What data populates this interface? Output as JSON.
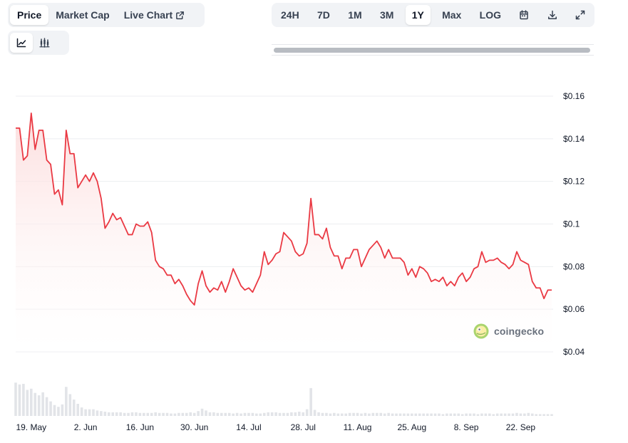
{
  "toolbar": {
    "view_tabs": [
      {
        "label": "Price",
        "active": true
      },
      {
        "label": "Market Cap",
        "active": false
      },
      {
        "label": "Live Chart",
        "active": false,
        "icon": "external-link-icon"
      }
    ],
    "chart_type_buttons": [
      {
        "icon": "line-chart-icon",
        "active": true
      },
      {
        "icon": "candlestick-chart-icon",
        "active": false
      }
    ],
    "range_tabs": [
      {
        "label": "24H",
        "active": false
      },
      {
        "label": "7D",
        "active": false
      },
      {
        "label": "1M",
        "active": false
      },
      {
        "label": "3M",
        "active": false
      },
      {
        "label": "1Y",
        "active": true
      },
      {
        "label": "Max",
        "active": false
      },
      {
        "label": "LOG",
        "active": false
      }
    ],
    "action_icons": [
      "calendar-icon",
      "download-icon",
      "fullscreen-icon"
    ]
  },
  "watermark": {
    "text": "coingecko"
  },
  "colors": {
    "line": "#ea3943",
    "fill_top": "#fcdcdc",
    "volume": "#e2e4e8",
    "grid": "#eceef1"
  },
  "chart_data": {
    "type": "line",
    "title": "",
    "xlabel": "",
    "ylabel": "",
    "ylim": [
      0.04,
      0.16
    ],
    "grid": true,
    "yticks": [
      0.16,
      0.14,
      0.12,
      0.1,
      0.08,
      0.06,
      0.04
    ],
    "ytick_labels": [
      "$0.16",
      "$0.14",
      "$0.12",
      "$0.1",
      "$0.08",
      "$0.06",
      "$0.04"
    ],
    "xtick_labels": [
      "19. May",
      "2. Jun",
      "16. Jun",
      "30. Jun",
      "14. Jul",
      "28. Jul",
      "11. Aug",
      "25. Aug",
      "8. Sep",
      "22. Sep"
    ],
    "xtick_days": [
      4,
      18,
      32,
      46,
      60,
      74,
      88,
      102,
      116,
      130
    ],
    "series": [
      {
        "values": [
          0.145,
          0.145,
          0.13,
          0.132,
          0.152,
          0.135,
          0.144,
          0.144,
          0.13,
          0.128,
          0.114,
          0.116,
          0.109,
          0.144,
          0.133,
          0.133,
          0.117,
          0.12,
          0.123,
          0.12,
          0.124,
          0.12,
          0.112,
          0.098,
          0.101,
          0.105,
          0.102,
          0.103,
          0.099,
          0.095,
          0.095,
          0.1,
          0.099,
          0.099,
          0.101,
          0.096,
          0.083,
          0.08,
          0.079,
          0.076,
          0.076,
          0.072,
          0.074,
          0.071,
          0.067,
          0.064,
          0.062,
          0.072,
          0.078,
          0.071,
          0.068,
          0.07,
          0.069,
          0.073,
          0.068,
          0.073,
          0.079,
          0.075,
          0.071,
          0.069,
          0.07,
          0.068,
          0.072,
          0.076,
          0.087,
          0.081,
          0.083,
          0.086,
          0.087,
          0.096,
          0.094,
          0.092,
          0.087,
          0.085,
          0.086,
          0.091,
          0.112,
          0.095,
          0.095,
          0.093,
          0.098,
          0.089,
          0.085,
          0.085,
          0.079,
          0.084,
          0.084,
          0.088,
          0.088,
          0.08,
          0.084,
          0.088,
          0.09,
          0.092,
          0.089,
          0.084,
          0.088,
          0.084,
          0.084,
          0.084,
          0.082,
          0.076,
          0.079,
          0.075,
          0.08,
          0.079,
          0.077,
          0.073,
          0.074,
          0.073,
          0.075,
          0.071,
          0.073,
          0.071,
          0.075,
          0.077,
          0.073,
          0.075,
          0.079,
          0.08,
          0.087,
          0.082,
          0.083,
          0.083,
          0.084,
          0.082,
          0.081,
          0.079,
          0.081,
          0.087,
          0.083,
          0.082,
          0.081,
          0.073,
          0.07,
          0.07,
          0.065,
          0.069,
          0.069
        ],
        "volume": [
          55,
          52,
          53,
          43,
          45,
          38,
          34,
          39,
          31,
          24,
          18,
          15,
          19,
          48,
          36,
          27,
          20,
          14,
          11,
          11,
          11,
          9,
          8,
          7,
          6,
          6,
          6,
          6,
          5,
          5,
          6,
          6,
          5,
          5,
          5,
          5,
          6,
          5,
          5,
          5,
          4,
          4,
          5,
          5,
          5,
          6,
          5,
          8,
          12,
          9,
          6,
          6,
          5,
          5,
          5,
          5,
          4,
          5,
          4,
          5,
          5,
          5,
          4,
          4,
          5,
          6,
          6,
          6,
          5,
          5,
          5,
          6,
          6,
          7,
          6,
          11,
          46,
          10,
          6,
          5,
          5,
          4,
          5,
          4,
          4,
          4,
          5,
          5,
          5,
          4,
          5,
          4,
          5,
          5,
          5,
          4,
          5,
          4,
          4,
          4,
          4,
          4,
          4,
          4,
          4,
          4,
          4,
          4,
          4,
          4,
          3,
          4,
          4,
          4,
          4,
          3,
          4,
          4,
          4,
          3,
          4,
          4,
          4,
          3,
          4,
          4,
          4,
          4,
          4,
          5,
          4,
          4,
          5,
          4,
          3,
          3,
          3,
          3,
          3
        ]
      }
    ]
  }
}
